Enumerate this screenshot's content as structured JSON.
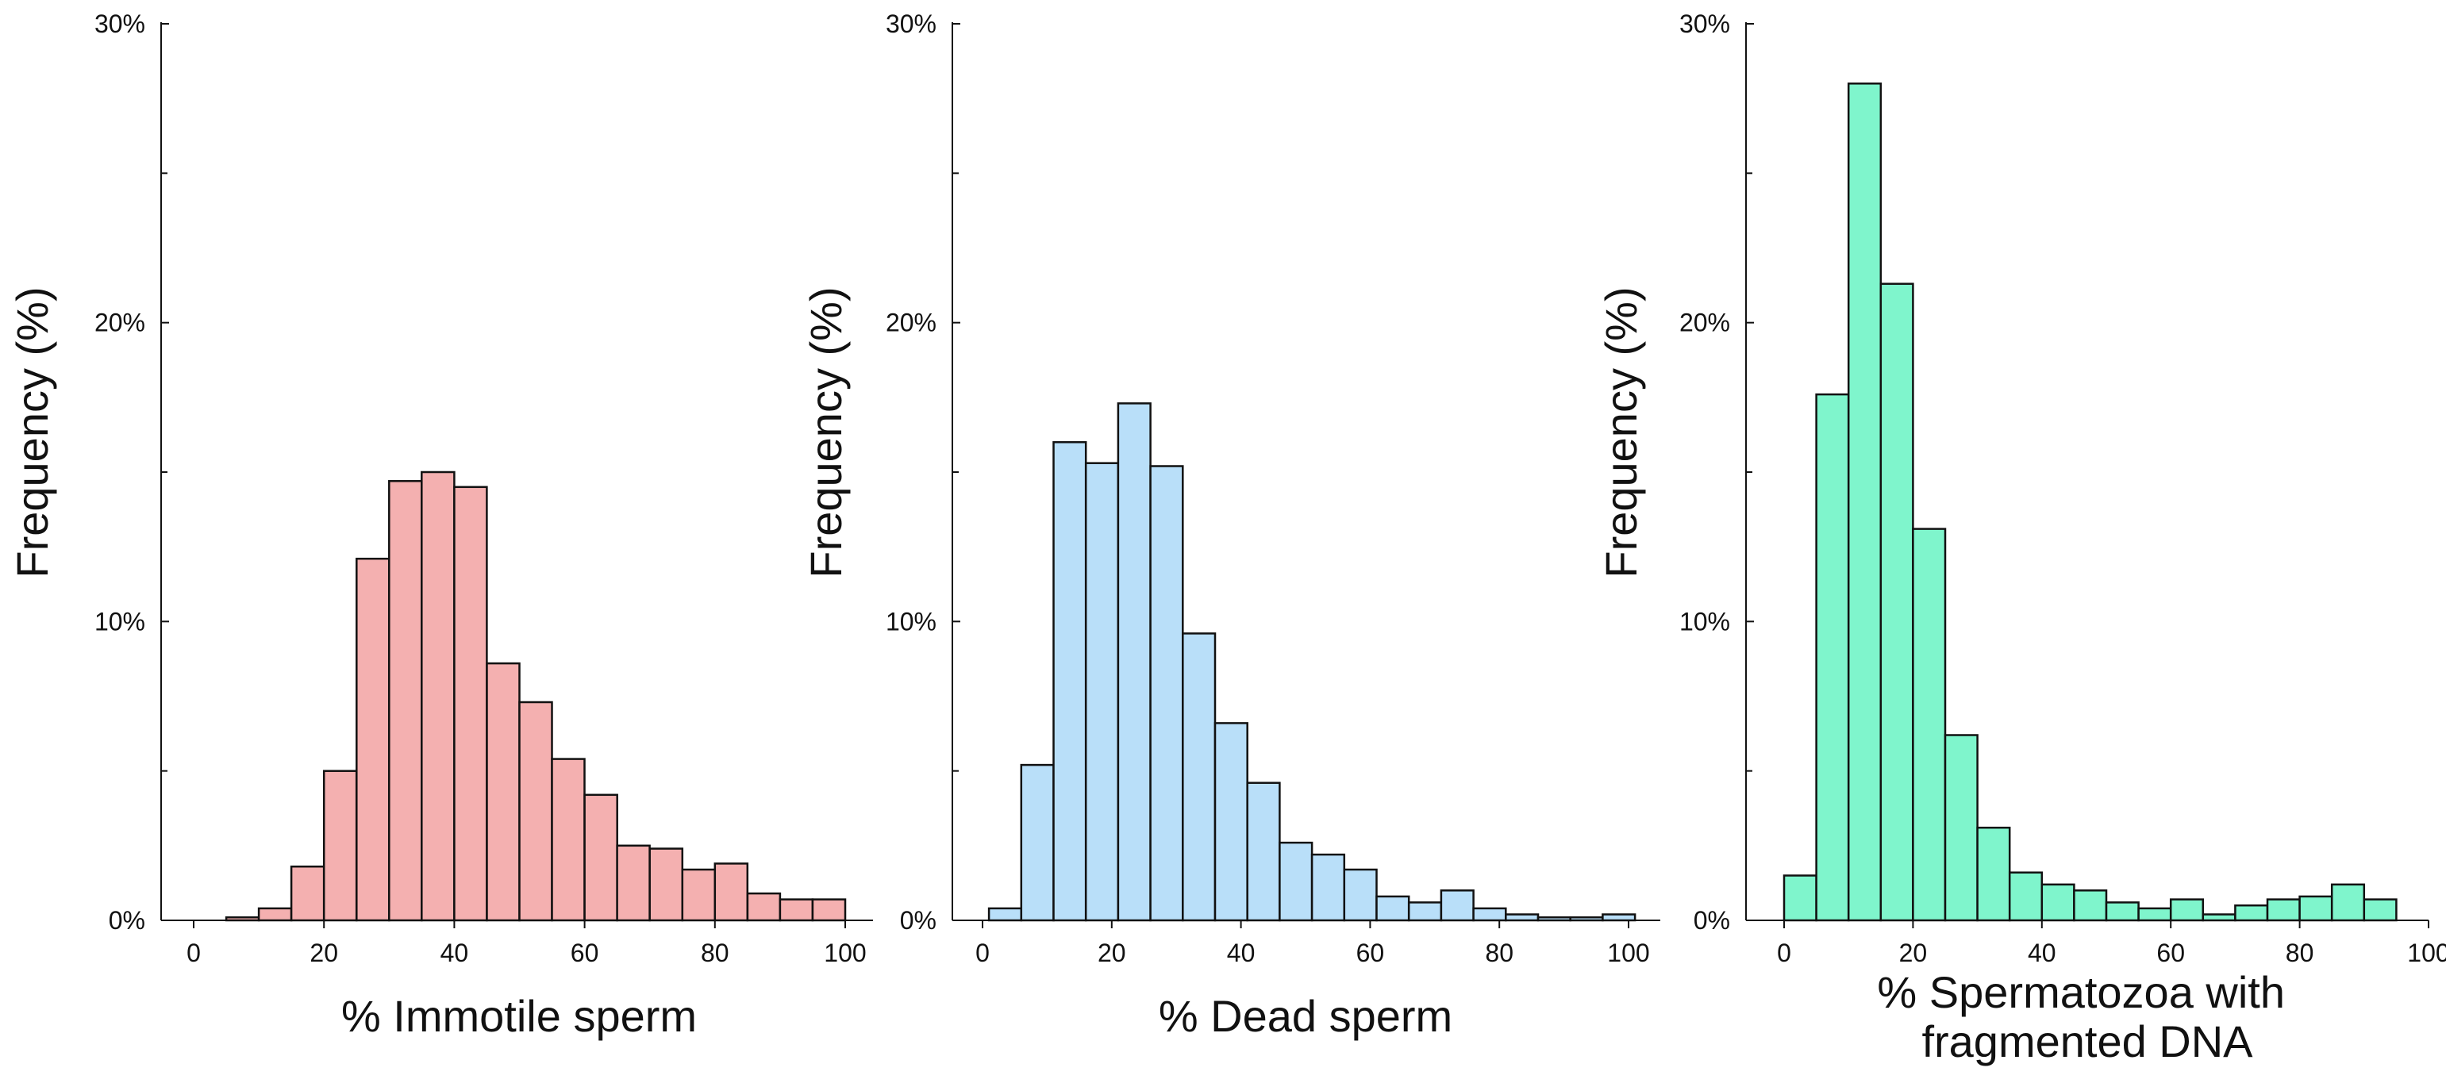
{
  "chart_data": [
    {
      "type": "bar",
      "name": "immotile",
      "title": "",
      "xlabel_lines": [
        "% Immotile sperm"
      ],
      "ylabel": "Frequency (%)",
      "ylim": [
        0,
        30
      ],
      "xlim": [
        -5,
        102
      ],
      "xticks": [
        0,
        20,
        40,
        60,
        80,
        100
      ],
      "xtick_labels": [
        "0",
        "20",
        "40",
        "60",
        "80",
        "100"
      ],
      "yticks": [
        0,
        10,
        20,
        30
      ],
      "ytick_labels": [
        "0%",
        "10%",
        "20%",
        "30%"
      ],
      "color": "#f4b0b0",
      "bin_width": 5,
      "bin_starts": [
        5,
        10,
        15,
        20,
        25,
        30,
        35,
        40,
        45,
        50,
        55,
        60,
        65,
        70,
        75,
        80,
        85,
        90,
        95
      ],
      "values": [
        0.1,
        0.4,
        1.8,
        5.0,
        12.1,
        14.7,
        15.0,
        14.5,
        8.6,
        7.3,
        5.4,
        4.2,
        2.5,
        2.4,
        1.7,
        1.9,
        0.9,
        0.7,
        0.7
      ]
    },
    {
      "type": "bar",
      "name": "dead",
      "title": "",
      "xlabel_lines": [
        "% Dead sperm"
      ],
      "ylabel": "Frequency (%)",
      "ylim": [
        0,
        30
      ],
      "xlim": [
        -5,
        105
      ],
      "xticks": [
        0,
        20,
        40,
        60,
        80,
        100
      ],
      "xtick_labels": [
        "0",
        "20",
        "40",
        "60",
        "80",
        "100"
      ],
      "yticks": [
        0,
        10,
        20,
        30
      ],
      "ytick_labels": [
        "0%",
        "10%",
        "20%",
        "30%"
      ],
      "color": "#b9dff9",
      "bin_width": 5,
      "bin_starts": [
        1,
        6,
        11,
        16,
        21,
        26,
        31,
        36,
        41,
        46,
        51,
        56,
        61,
        66,
        71,
        76,
        81,
        86,
        91,
        96
      ],
      "values": [
        0.4,
        5.2,
        16.0,
        15.3,
        17.3,
        15.2,
        9.6,
        6.6,
        4.6,
        2.6,
        2.2,
        1.7,
        0.8,
        0.6,
        1.0,
        0.4,
        0.2,
        0.1,
        0.1,
        0.2
      ]
    },
    {
      "type": "bar",
      "name": "fragmented",
      "title": "",
      "xlabel_lines": [
        "% Spermatozoa with",
        "fragmented DNA"
      ],
      "ylabel": "Frequency (%)",
      "ylim": [
        0,
        30
      ],
      "xlim": [
        -5,
        103
      ],
      "xticks": [
        0,
        20,
        40,
        60,
        80,
        100
      ],
      "xtick_labels": [
        "0",
        "20",
        "40",
        "60",
        "80",
        "100"
      ],
      "yticks": [
        0,
        10,
        20,
        30
      ],
      "ytick_labels": [
        "0%",
        "10%",
        "20%",
        "30%"
      ],
      "color": "#7ff5cc",
      "bin_width": 5,
      "bin_starts": [
        0,
        5,
        10,
        15,
        20,
        25,
        30,
        35,
        40,
        45,
        50,
        55,
        60,
        65,
        70,
        75,
        80,
        85,
        90
      ],
      "values": [
        1.5,
        17.6,
        28.0,
        21.3,
        13.1,
        6.2,
        3.1,
        1.6,
        1.2,
        1.0,
        0.6,
        0.4,
        0.7,
        0.2,
        0.5,
        0.7,
        0.8,
        1.2,
        0.7
      ]
    }
  ]
}
